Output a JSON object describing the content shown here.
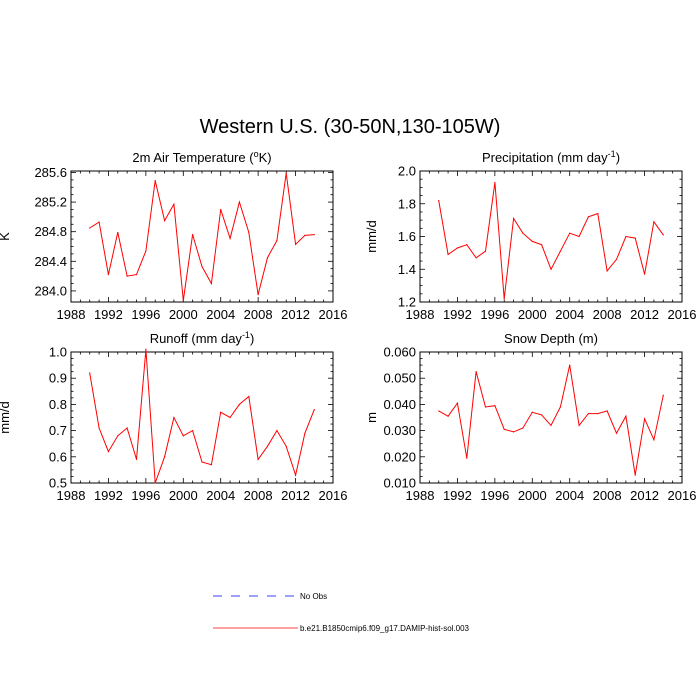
{
  "title": "Western U.S. (30-50N,130-105W)",
  "legend": {
    "entries": [
      {
        "label": "No Obs",
        "color": "#0000ff",
        "dash": true
      },
      {
        "label": "b.e21.B1850cmip6.f09_g17.DAMIP-hist-sol.003",
        "color": "#ff0000",
        "dash": false
      }
    ]
  },
  "chart_data": [
    {
      "type": "line",
      "title": "2m Air Temperature (ᵒK)",
      "title_main": "2m Air Temperature (",
      "title_sup": "o",
      "title_tail": "K)",
      "ylabel": "K",
      "xlim": [
        1988,
        2016
      ],
      "ylim": [
        283.85,
        285.62
      ],
      "xticks": [
        1988,
        1992,
        1996,
        2000,
        2004,
        2008,
        2012,
        2016
      ],
      "yticks": [
        284.0,
        284.4,
        284.8,
        285.2,
        285.6
      ],
      "ytick_labels": [
        "284.0",
        "284.4",
        "284.8",
        "285.2",
        "285.6"
      ],
      "x": [
        1990,
        1991,
        1992,
        1993,
        1994,
        1995,
        1996,
        1997,
        1998,
        1999,
        2000,
        2001,
        2002,
        2003,
        2004,
        2005,
        2006,
        2007,
        2008,
        2009,
        2010,
        2011,
        2012,
        2013,
        2014
      ],
      "series": [
        {
          "color": "#ff0000",
          "values": [
            284.85,
            284.93,
            284.22,
            284.79,
            284.2,
            284.22,
            284.54,
            285.49,
            284.95,
            285.17,
            283.87,
            284.76,
            284.33,
            284.1,
            285.1,
            284.71,
            285.2,
            284.79,
            283.95,
            284.45,
            284.68,
            285.59,
            284.63,
            284.75,
            284.76
          ]
        }
      ]
    },
    {
      "type": "line",
      "title": "Precipitation (mm day⁻¹)",
      "title_main": "Precipitation (mm day",
      "title_sup": "-1",
      "title_tail": ")",
      "ylabel": "mm/d",
      "xlim": [
        1988,
        2016
      ],
      "ylim": [
        1.2,
        2.0
      ],
      "xticks": [
        1988,
        1992,
        1996,
        2000,
        2004,
        2008,
        2012,
        2016
      ],
      "yticks": [
        1.2,
        1.4,
        1.6,
        1.8,
        2.0
      ],
      "ytick_labels": [
        "1.2",
        "1.4",
        "1.6",
        "1.8",
        "2.0"
      ],
      "x": [
        1990,
        1991,
        1992,
        1993,
        1994,
        1995,
        1996,
        1997,
        1998,
        1999,
        2000,
        2001,
        2002,
        2003,
        2004,
        2005,
        2006,
        2007,
        2008,
        2009,
        2010,
        2011,
        2012,
        2013,
        2014
      ],
      "series": [
        {
          "color": "#ff0000",
          "values": [
            1.82,
            1.49,
            1.53,
            1.55,
            1.47,
            1.51,
            1.93,
            1.22,
            1.71,
            1.62,
            1.57,
            1.55,
            1.4,
            1.51,
            1.62,
            1.6,
            1.72,
            1.74,
            1.39,
            1.46,
            1.6,
            1.59,
            1.37,
            1.69,
            1.61
          ]
        }
      ]
    },
    {
      "type": "line",
      "title": "Runoff (mm day⁻¹)",
      "title_main": "Runoff (mm day",
      "title_sup": "-1",
      "title_tail": ")",
      "ylabel": "mm/d",
      "xlim": [
        1988,
        2016
      ],
      "ylim": [
        0.5,
        1.0
      ],
      "xticks": [
        1988,
        1992,
        1996,
        2000,
        2004,
        2008,
        2012,
        2016
      ],
      "yticks": [
        0.5,
        0.6,
        0.7,
        0.8,
        0.9,
        1.0
      ],
      "ytick_labels": [
        "0.5",
        "0.6",
        "0.7",
        "0.8",
        "0.9",
        "1.0"
      ],
      "x": [
        1990,
        1991,
        1992,
        1993,
        1994,
        1995,
        1996,
        1997,
        1998,
        1999,
        2000,
        2001,
        2002,
        2003,
        2004,
        2005,
        2006,
        2007,
        2008,
        2009,
        2010,
        2011,
        2012,
        2013,
        2014
      ],
      "series": [
        {
          "color": "#ff0000",
          "values": [
            0.92,
            0.71,
            0.62,
            0.68,
            0.71,
            0.59,
            1.01,
            0.5,
            0.6,
            0.75,
            0.68,
            0.7,
            0.58,
            0.57,
            0.77,
            0.75,
            0.8,
            0.83,
            0.59,
            0.64,
            0.7,
            0.64,
            0.53,
            0.69,
            0.78
          ]
        }
      ]
    },
    {
      "type": "line",
      "title": "Snow Depth (m)",
      "title_main": "Snow Depth (m)",
      "title_sup": "",
      "title_tail": "",
      "ylabel": "m",
      "xlim": [
        1988,
        2016
      ],
      "ylim": [
        0.01,
        0.06
      ],
      "xticks": [
        1988,
        1992,
        1996,
        2000,
        2004,
        2008,
        2012,
        2016
      ],
      "yticks": [
        0.01,
        0.02,
        0.03,
        0.04,
        0.05,
        0.06
      ],
      "ytick_labels": [
        "0.010",
        "0.020",
        "0.030",
        "0.040",
        "0.050",
        "0.060"
      ],
      "x": [
        1990,
        1991,
        1992,
        1993,
        1994,
        1995,
        1996,
        1997,
        1998,
        1999,
        2000,
        2001,
        2002,
        2003,
        2004,
        2005,
        2006,
        2007,
        2008,
        2009,
        2010,
        2011,
        2012,
        2013,
        2014
      ],
      "series": [
        {
          "color": "#ff0000",
          "values": [
            0.0375,
            0.0355,
            0.0405,
            0.0195,
            0.0525,
            0.039,
            0.0395,
            0.0305,
            0.0295,
            0.031,
            0.037,
            0.036,
            0.032,
            0.039,
            0.055,
            0.032,
            0.0365,
            0.0365,
            0.0375,
            0.029,
            0.0355,
            0.013,
            0.0345,
            0.0265,
            0.0435
          ]
        }
      ]
    }
  ]
}
